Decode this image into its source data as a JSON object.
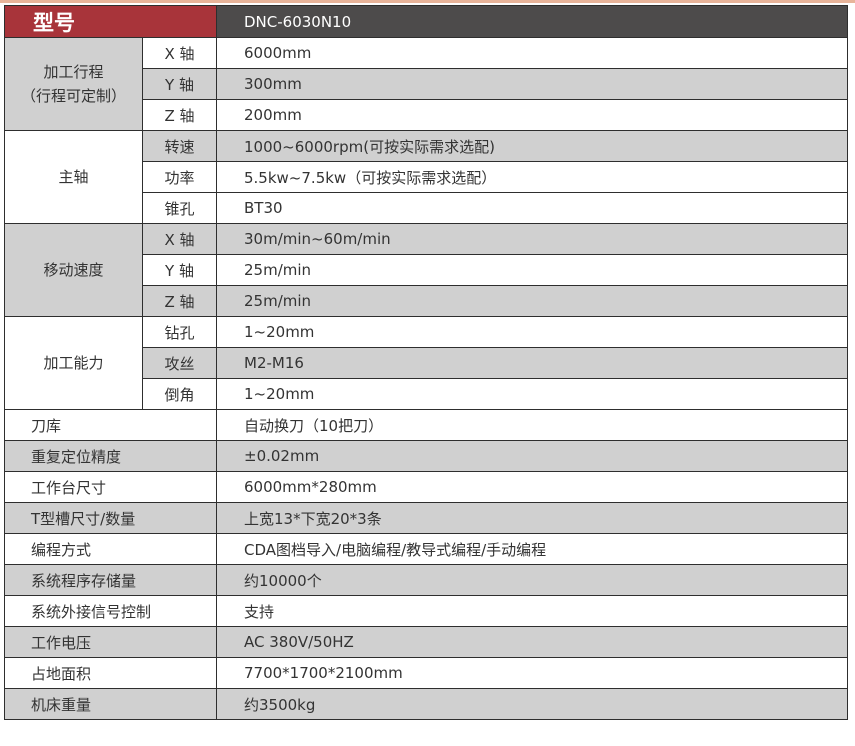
{
  "header": {
    "label": "型号",
    "value": "DNC-6030N10"
  },
  "colors": {
    "header_red": "#a8343a",
    "header_dark": "#4d4b4b",
    "row_gray": "#d0d0d0"
  },
  "groups": [
    {
      "label_line1": "加工行程",
      "label_line2": "（行程可定制）",
      "shade": "g",
      "rows": [
        {
          "sub": "X 轴",
          "value": "6000mm",
          "shade": "w"
        },
        {
          "sub": "Y 轴",
          "value": "300mm",
          "shade": "g"
        },
        {
          "sub": "Z 轴",
          "value": "200mm",
          "shade": "w"
        }
      ]
    },
    {
      "label_line1": "主轴",
      "label_line2": "",
      "shade": "w",
      "rows": [
        {
          "sub": "转速",
          "value": "1000~6000rpm(可按实际需求选配)",
          "shade": "g"
        },
        {
          "sub": "功率",
          "value": "5.5kw~7.5kw（可按实际需求选配）",
          "shade": "w"
        },
        {
          "sub": "锥孔",
          "value": "BT30",
          "shade": "w"
        }
      ]
    },
    {
      "label_line1": "移动速度",
      "label_line2": "",
      "shade": "g",
      "rows": [
        {
          "sub": "X 轴",
          "value": "30m/min~60m/min",
          "shade": "g"
        },
        {
          "sub": "Y 轴",
          "value": "25m/min",
          "shade": "w"
        },
        {
          "sub": "Z 轴",
          "value": "25m/min",
          "shade": "g"
        }
      ]
    },
    {
      "label_line1": "加工能力",
      "label_line2": "",
      "shade": "w",
      "rows": [
        {
          "sub": "钻孔",
          "value": "1~20mm",
          "shade": "w"
        },
        {
          "sub": "攻丝",
          "value": "M2-M16",
          "shade": "g"
        },
        {
          "sub": "倒角",
          "value": "1~20mm",
          "shade": "w"
        }
      ]
    }
  ],
  "rows": [
    {
      "label": "刀库",
      "value": "自动换刀（10把刀）",
      "shade": "w"
    },
    {
      "label": "重复定位精度",
      "value": "±0.02mm",
      "shade": "g"
    },
    {
      "label": "工作台尺寸",
      "value": "6000mm*280mm",
      "shade": "w"
    },
    {
      "label": "T型槽尺寸/数量",
      "value": "上宽13*下宽20*3条",
      "shade": "g"
    },
    {
      "label": "编程方式",
      "value": "CDA图档导入/电脑编程/教导式编程/手动编程",
      "shade": "w"
    },
    {
      "label": "系统程序存储量",
      "value": "约10000个",
      "shade": "g"
    },
    {
      "label": "系统外接信号控制",
      "value": "支持",
      "shade": "w"
    },
    {
      "label": "工作电压",
      "value": "AC 380V/50HZ",
      "shade": "g"
    },
    {
      "label": "占地面积",
      "value": "7700*1700*2100mm",
      "shade": "w"
    },
    {
      "label": "机床重量",
      "value": "约3500kg",
      "shade": "g"
    }
  ]
}
